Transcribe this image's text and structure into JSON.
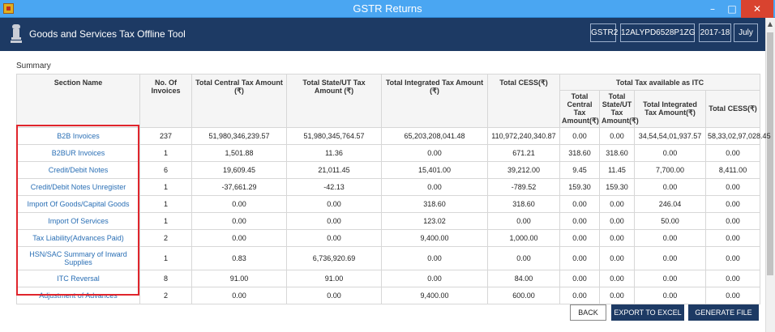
{
  "window": {
    "title": "GSTR Returns",
    "minimize_glyph": "–",
    "maximize_glyph": "□",
    "close_glyph": "✕"
  },
  "header": {
    "app_title": "Goods and Services Tax Offline Tool",
    "form": "GSTR2",
    "gstin": "12ALYPD6528P1ZG",
    "financial_year": "2017-18",
    "month": "July"
  },
  "summary": {
    "label": "Summary",
    "columns": {
      "section_name": "Section Name",
      "invoices": "No. Of Invoices",
      "central": "Total Central Tax Amount (₹)",
      "state": "Total State/UT Tax Amount (₹)",
      "integrated": "Total Integrated Tax Amount (₹)",
      "cess": "Total CESS(₹)",
      "itc_group": "Total Tax available as ITC",
      "itc_central": "Total Central Tax Amount(₹)",
      "itc_state": "Total State/UT Tax Amount(₹)",
      "itc_integrated": "Total Integrated Tax Amount(₹)",
      "itc_cess": "Total CESS(₹)"
    },
    "rows": [
      {
        "section": "B2B Invoices",
        "invoices": "237",
        "central": "51,980,346,239.57",
        "state": "51,980,345,764.57",
        "integrated": "65,203,208,041.48",
        "cess": "110,972,240,340.87",
        "itc_central": "0.00",
        "itc_state": "0.00",
        "itc_integrated": "34,54,54,01,937.57",
        "itc_cess": "58,33,02,97,028.45"
      },
      {
        "section": "B2BUR Invoices",
        "invoices": "1",
        "central": "1,501.88",
        "state": "11.36",
        "integrated": "0.00",
        "cess": "671.21",
        "itc_central": "318.60",
        "itc_state": "318.60",
        "itc_integrated": "0.00",
        "itc_cess": "0.00"
      },
      {
        "section": "Credit/Debit Notes",
        "invoices": "6",
        "central": "19,609.45",
        "state": "21,011.45",
        "integrated": "15,401.00",
        "cess": "39,212.00",
        "itc_central": "9.45",
        "itc_state": "11.45",
        "itc_integrated": "7,700.00",
        "itc_cess": "8,411.00"
      },
      {
        "section": "Credit/Debit Notes Unregister",
        "invoices": "1",
        "central": "-37,661.29",
        "state": "-42.13",
        "integrated": "0.00",
        "cess": "-789.52",
        "itc_central": "159.30",
        "itc_state": "159.30",
        "itc_integrated": "0.00",
        "itc_cess": "0.00"
      },
      {
        "section": "Import Of Goods/Capital Goods",
        "invoices": "1",
        "central": "0.00",
        "state": "0.00",
        "integrated": "318.60",
        "cess": "318.60",
        "itc_central": "0.00",
        "itc_state": "0.00",
        "itc_integrated": "246.04",
        "itc_cess": "0.00"
      },
      {
        "section": "Import Of Services",
        "invoices": "1",
        "central": "0.00",
        "state": "0.00",
        "integrated": "123.02",
        "cess": "0.00",
        "itc_central": "0.00",
        "itc_state": "0.00",
        "itc_integrated": "50.00",
        "itc_cess": "0.00"
      },
      {
        "section": "Tax Liability(Advances Paid)",
        "invoices": "2",
        "central": "0.00",
        "state": "0.00",
        "integrated": "9,400.00",
        "cess": "1,000.00",
        "itc_central": "0.00",
        "itc_state": "0.00",
        "itc_integrated": "0.00",
        "itc_cess": "0.00"
      },
      {
        "section": "HSN/SAC Summary of Inward Supplies",
        "invoices": "1",
        "central": "0.83",
        "state": "6,736,920.69",
        "integrated": "0.00",
        "cess": "0.00",
        "itc_central": "0.00",
        "itc_state": "0.00",
        "itc_integrated": "0.00",
        "itc_cess": "0.00"
      },
      {
        "section": "ITC Reversal",
        "invoices": "8",
        "central": "91.00",
        "state": "91.00",
        "integrated": "0.00",
        "cess": "84.00",
        "itc_central": "0.00",
        "itc_state": "0.00",
        "itc_integrated": "0.00",
        "itc_cess": "0.00"
      },
      {
        "section": "Adjustment of Advances",
        "invoices": "2",
        "central": "0.00",
        "state": "0.00",
        "integrated": "9,400.00",
        "cess": "600.00",
        "itc_central": "0.00",
        "itc_state": "0.00",
        "itc_integrated": "0.00",
        "itc_cess": "0.00"
      }
    ]
  },
  "actions": {
    "back": "BACK",
    "export": "EXPORT TO EXCEL",
    "generate": "GENERATE FILE"
  },
  "colors": {
    "header_bg": "#1d3a64",
    "titlebar_bg": "#4aa6f2",
    "link": "#2a6fb5",
    "highlight_border": "#e0252c"
  }
}
